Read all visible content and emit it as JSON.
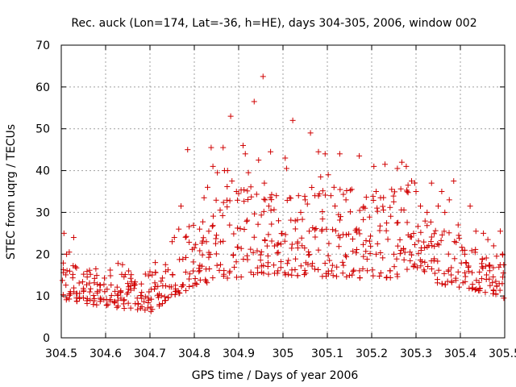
{
  "chart_data": {
    "type": "scatter",
    "title": "Rec. auck (Lon=174, Lat=-36, h=HE), days 304-305, 2006, window 002",
    "xlabel": "GPS time / Days of year 2006",
    "ylabel": "STEC from uqrg / TECUs",
    "xlim": [
      304.5,
      305.5
    ],
    "ylim": [
      0,
      70
    ],
    "x_ticks": [
      "304.5",
      "304.6",
      "304.7",
      "304.8",
      "304.9",
      "305",
      "305.1",
      "305.2",
      "305.3",
      "305.4",
      "305.5"
    ],
    "y_ticks": [
      "0",
      "10",
      "20",
      "30",
      "40",
      "50",
      "60",
      "70"
    ],
    "grid": true,
    "marker": "plus",
    "color": "#d00000",
    "outliers": [
      [
        304.506,
        25.0
      ],
      [
        304.512,
        20.0
      ],
      [
        304.518,
        20.5
      ],
      [
        304.528,
        24.0
      ],
      [
        304.532,
        17.0
      ],
      [
        304.578,
        16.5
      ],
      [
        304.628,
        17.8
      ],
      [
        304.638,
        17.5
      ],
      [
        304.652,
        16.0
      ],
      [
        304.7,
        15.8
      ],
      [
        304.712,
        18.0
      ],
      [
        304.735,
        17.5
      ],
      [
        304.75,
        23.0
      ],
      [
        304.755,
        24.0
      ],
      [
        304.765,
        26.0
      ],
      [
        304.77,
        31.5
      ],
      [
        304.785,
        45.0
      ],
      [
        304.8,
        21.5
      ],
      [
        304.812,
        26.0
      ],
      [
        304.822,
        33.5
      ],
      [
        304.83,
        36.0
      ],
      [
        304.838,
        45.5
      ],
      [
        304.842,
        41.0
      ],
      [
        304.852,
        39.5
      ],
      [
        304.865,
        45.5
      ],
      [
        304.868,
        40.0
      ],
      [
        304.875,
        40.0
      ],
      [
        304.882,
        53.0
      ],
      [
        304.885,
        37.5
      ],
      [
        304.895,
        35.0
      ],
      [
        304.9,
        34.5
      ],
      [
        304.91,
        46.0
      ],
      [
        304.915,
        44.0
      ],
      [
        304.922,
        39.5
      ],
      [
        304.935,
        56.5
      ],
      [
        304.945,
        42.5
      ],
      [
        304.955,
        62.5
      ],
      [
        304.958,
        37.0
      ],
      [
        304.96,
        33.0
      ],
      [
        304.968,
        31.5
      ],
      [
        304.972,
        44.5
      ],
      [
        304.985,
        34.0
      ],
      [
        304.99,
        28.0
      ],
      [
        305.005,
        43.0
      ],
      [
        305.008,
        40.5
      ],
      [
        305.015,
        33.5
      ],
      [
        305.022,
        52.0
      ],
      [
        305.035,
        34.0
      ],
      [
        305.04,
        30.0
      ],
      [
        305.05,
        33.0
      ],
      [
        305.055,
        32.0
      ],
      [
        305.062,
        49.0
      ],
      [
        305.072,
        34.0
      ],
      [
        305.08,
        44.5
      ],
      [
        305.085,
        38.5
      ],
      [
        305.095,
        44.0
      ],
      [
        305.102,
        39.0
      ],
      [
        305.108,
        34.0
      ],
      [
        305.115,
        36.0
      ],
      [
        305.128,
        44.0
      ],
      [
        305.13,
        29.0
      ],
      [
        305.142,
        33.0
      ],
      [
        305.155,
        35.5
      ],
      [
        305.172,
        43.5
      ],
      [
        305.185,
        31.0
      ],
      [
        305.205,
        41.0
      ],
      [
        305.21,
        35.0
      ],
      [
        305.22,
        33.5
      ],
      [
        305.23,
        41.5
      ],
      [
        305.245,
        35.5
      ],
      [
        305.258,
        40.5
      ],
      [
        305.268,
        42.0
      ],
      [
        305.278,
        41.0
      ],
      [
        305.282,
        36.5
      ],
      [
        305.29,
        37.5
      ],
      [
        305.3,
        35.0
      ],
      [
        305.31,
        31.5
      ],
      [
        305.325,
        30.0
      ],
      [
        305.335,
        37.0
      ],
      [
        305.35,
        31.5
      ],
      [
        305.358,
        35.0
      ],
      [
        305.365,
        30.0
      ],
      [
        305.375,
        33.0
      ],
      [
        305.385,
        37.5
      ],
      [
        305.395,
        27.0
      ],
      [
        305.41,
        20.0
      ],
      [
        305.422,
        31.5
      ],
      [
        305.435,
        25.5
      ],
      [
        305.452,
        25.0
      ],
      [
        305.462,
        23.5
      ],
      [
        305.475,
        22.0
      ],
      [
        305.49,
        25.5
      ],
      [
        305.495,
        20.0
      ],
      [
        305.498,
        9.5
      ]
    ],
    "point_count_note": "dense band of several hundred points; generated series approximates the spread"
  }
}
